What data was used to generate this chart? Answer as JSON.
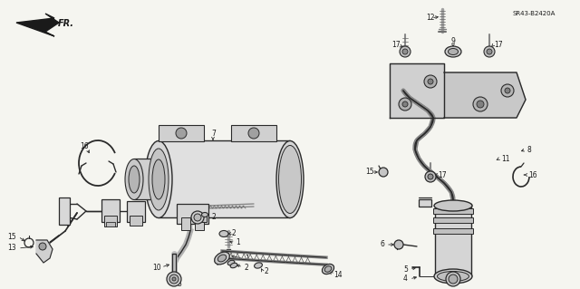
{
  "background_color": "#f5f5f0",
  "line_color": "#2a2a2a",
  "text_color": "#1a1a1a",
  "diagram_code": "SR43-B2420A",
  "fig_width": 6.4,
  "fig_height": 3.19,
  "dpi": 100
}
